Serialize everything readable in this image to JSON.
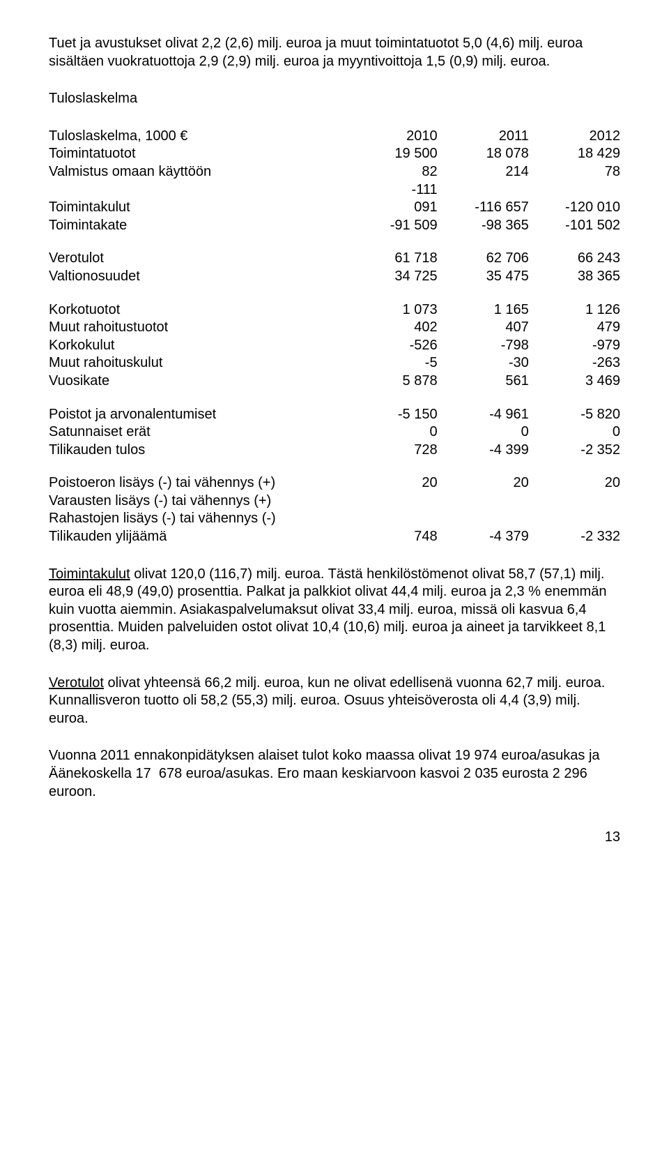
{
  "colors": {
    "background": "#ffffff",
    "text": "#000000"
  },
  "typography": {
    "font_family": "Arial",
    "body_fontsize_pt": 15,
    "line_height": 1.28
  },
  "intro": {
    "text": "Tuet ja avustukset olivat 2,2 (2,6) milj. euroa ja muut toimintatuotot 5,0 (4,6) milj. euroa sisältäen vuokratuottoja 2,9 (2,9) milj. euroa ja myyntivoittoja 1,5 (0,9) milj. euroa."
  },
  "tuloslaskelma": {
    "section_title": "Tuloslaskelma",
    "table_title": "Tuloslaskelma, 1000 €",
    "years": [
      "2010",
      "2011",
      "2012"
    ],
    "rows": [
      {
        "label": "Toimintatuotot",
        "v": [
          "19 500",
          "18 078",
          "18 429"
        ]
      },
      {
        "label": "Valmistus omaan käyttöön",
        "v": [
          "82",
          "214",
          "78"
        ]
      },
      {
        "label": "Toimintakulut",
        "v": [
          "-111 091",
          "-116 657",
          "-120 010"
        ],
        "multiline_first": true
      },
      {
        "label": "Toimintakate",
        "v": [
          "-91 509",
          "-98 365",
          "-101 502"
        ]
      }
    ],
    "group2": [
      {
        "label": "Verotulot",
        "v": [
          "61 718",
          "62 706",
          "66 243"
        ]
      },
      {
        "label": "Valtionosuudet",
        "v": [
          "34 725",
          "35 475",
          "38 365"
        ]
      }
    ],
    "group3": [
      {
        "label": "Korkotuotot",
        "v": [
          "1 073",
          "1 165",
          "1 126"
        ]
      },
      {
        "label": "Muut rahoitustuotot",
        "v": [
          "402",
          "407",
          "479"
        ]
      },
      {
        "label": "Korkokulut",
        "v": [
          "-526",
          "-798",
          "-979"
        ]
      },
      {
        "label": "Muut rahoituskulut",
        "v": [
          "-5",
          "-30",
          "-263"
        ]
      },
      {
        "label": "Vuosikate",
        "v": [
          "5 878",
          "561",
          "3 469"
        ]
      }
    ],
    "group4": [
      {
        "label": "Poistot ja arvonalentumiset",
        "v": [
          "-5 150",
          "-4 961",
          "-5 820"
        ]
      },
      {
        "label": "Satunnaiset erät",
        "v": [
          "0",
          "0",
          "0"
        ]
      },
      {
        "label": "Tilikauden tulos",
        "v": [
          "728",
          "-4 399",
          "-2 352"
        ]
      }
    ],
    "group5": [
      {
        "label": "Poistoeron lisäys (-) tai vähennys (+)",
        "v": [
          "20",
          "20",
          "20"
        ]
      },
      {
        "label": "Varausten lisäys (-) tai vähennys (+)",
        "v": [
          "",
          "",
          ""
        ]
      },
      {
        "label": "Rahastojen lisäys (-) tai vähennys (-)",
        "v": [
          "",
          "",
          ""
        ]
      },
      {
        "label": "Tilikauden ylijäämä",
        "v": [
          "748",
          "-4 379",
          "-2 332"
        ]
      }
    ]
  },
  "body_paragraphs": {
    "p1_u": "Toimintakulut",
    "p1_rest": " olivat 120,0 (116,7) milj. euroa. Tästä henkilöstömenot olivat 58,7 (57,1) milj. euroa eli 48,9 (49,0) prosenttia. Palkat ja palkkiot olivat 44,4 milj. euroa ja 2,3 % enemmän kuin vuotta aiemmin. Asiakaspalvelumaksut olivat 33,4 milj. euroa, missä oli kasvua 6,4 prosenttia. Muiden palveluiden ostot olivat 10,4 (10,6) milj. euroa ja aineet ja tarvikkeet 8,1 (8,3) milj. euroa.",
    "p2_u": "Verotulot",
    "p2_rest": " olivat yhteensä 66,2 milj. euroa, kun ne olivat edellisenä vuonna 62,7 milj. euroa. Kunnallisveron tuotto oli 58,2 (55,3) milj. euroa. Osuus yhteisöverosta oli 4,4 (3,9) milj. euroa.",
    "p3": "Vuonna 2011 ennakonpidätyksen alaiset tulot koko maassa olivat 19 974 euroa/asukas ja Äänekoskella 17  678 euroa/asukas. Ero maan keskiarvoon kasvoi 2 035 eurosta 2 296 euroon."
  },
  "page_number": "13"
}
